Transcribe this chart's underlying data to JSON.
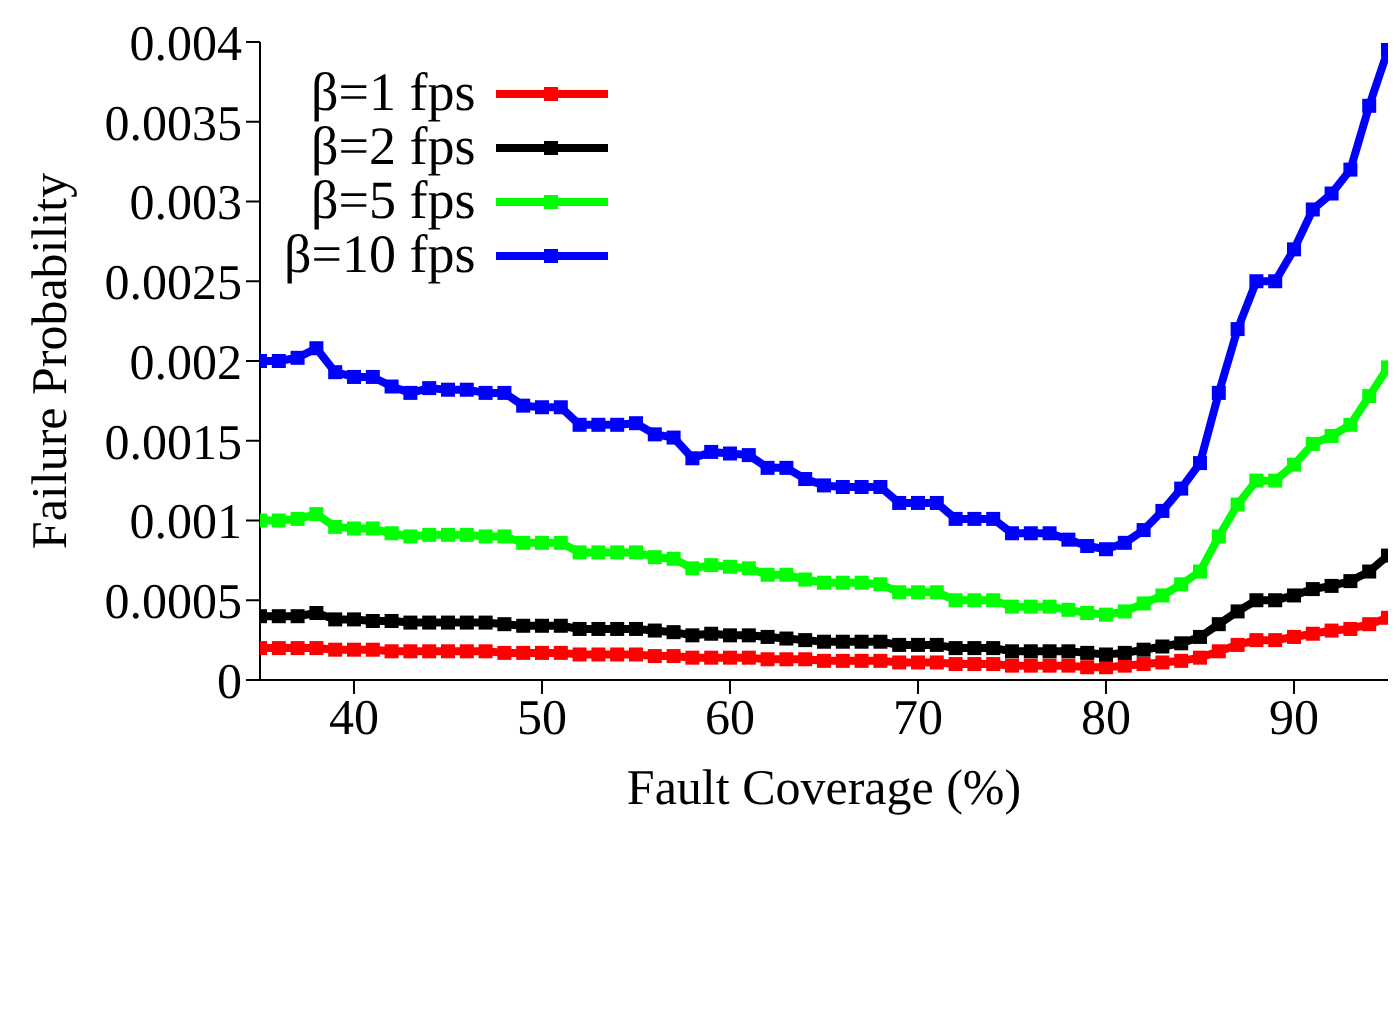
{
  "chart_data": {
    "type": "line",
    "xlabel": "Fault Coverage (%)",
    "ylabel": "Failure Probability",
    "x": [
      35,
      36,
      37,
      38,
      39,
      40,
      41,
      42,
      43,
      44,
      45,
      46,
      47,
      48,
      49,
      50,
      51,
      52,
      53,
      54,
      55,
      56,
      57,
      58,
      59,
      60,
      61,
      62,
      63,
      64,
      65,
      66,
      67,
      68,
      69,
      70,
      71,
      72,
      73,
      74,
      75,
      76,
      77,
      78,
      79,
      80,
      81,
      82,
      83,
      84,
      85,
      86,
      87,
      88,
      89,
      90,
      91,
      92,
      93,
      94,
      95
    ],
    "series": [
      {
        "name": "β=1 fps",
        "color": "#ff0000",
        "values": [
          0.0002,
          0.0002,
          0.0002,
          0.0002,
          0.00019,
          0.00019,
          0.00019,
          0.00018,
          0.00018,
          0.00018,
          0.00018,
          0.00018,
          0.00018,
          0.00017,
          0.00017,
          0.00017,
          0.00017,
          0.00016,
          0.00016,
          0.00016,
          0.00016,
          0.00015,
          0.00015,
          0.00014,
          0.00014,
          0.00014,
          0.00014,
          0.00013,
          0.00013,
          0.00013,
          0.00012,
          0.00012,
          0.00012,
          0.00012,
          0.00011,
          0.00011,
          0.00011,
          0.0001,
          0.0001,
          0.0001,
          9e-05,
          9e-05,
          9e-05,
          9e-05,
          8e-05,
          8e-05,
          9e-05,
          0.0001,
          0.00011,
          0.00012,
          0.00014,
          0.00018,
          0.00022,
          0.00025,
          0.00025,
          0.00027,
          0.00029,
          0.00031,
          0.00032,
          0.00035,
          0.00039
        ]
      },
      {
        "name": "β=2 fps",
        "color": "#000000",
        "values": [
          0.0004,
          0.0004,
          0.0004,
          0.00042,
          0.00038,
          0.00038,
          0.00037,
          0.00037,
          0.00036,
          0.00036,
          0.00036,
          0.00036,
          0.00036,
          0.00035,
          0.00034,
          0.00034,
          0.00034,
          0.00032,
          0.00032,
          0.00032,
          0.00032,
          0.00031,
          0.0003,
          0.00028,
          0.00029,
          0.00028,
          0.00028,
          0.00027,
          0.00026,
          0.00025,
          0.00024,
          0.00024,
          0.00024,
          0.00024,
          0.00022,
          0.00022,
          0.00022,
          0.0002,
          0.0002,
          0.0002,
          0.00018,
          0.00018,
          0.00018,
          0.00018,
          0.00017,
          0.00016,
          0.00017,
          0.00019,
          0.00021,
          0.00023,
          0.00027,
          0.00035,
          0.00043,
          0.0005,
          0.0005,
          0.00053,
          0.00057,
          0.00059,
          0.00062,
          0.00068,
          0.00078
        ]
      },
      {
        "name": "β=5 fps",
        "color": "#00ff00",
        "values": [
          0.001,
          0.001,
          0.00101,
          0.00104,
          0.00096,
          0.00095,
          0.00095,
          0.00092,
          0.0009,
          0.00091,
          0.00091,
          0.00091,
          0.0009,
          0.0009,
          0.00086,
          0.00086,
          0.00086,
          0.0008,
          0.0008,
          0.0008,
          0.0008,
          0.00077,
          0.00076,
          0.0007,
          0.00072,
          0.00071,
          0.0007,
          0.00066,
          0.00066,
          0.00063,
          0.00061,
          0.00061,
          0.00061,
          0.0006,
          0.00055,
          0.00055,
          0.00055,
          0.0005,
          0.0005,
          0.0005,
          0.00046,
          0.00046,
          0.00046,
          0.00044,
          0.00042,
          0.00041,
          0.00043,
          0.00048,
          0.00053,
          0.0006,
          0.00068,
          0.0009,
          0.0011,
          0.00125,
          0.00125,
          0.00135,
          0.00148,
          0.00153,
          0.0016,
          0.00178,
          0.00196
        ]
      },
      {
        "name": "β=10 fps",
        "color": "#0000ff",
        "values": [
          0.002,
          0.002,
          0.00202,
          0.00208,
          0.00193,
          0.0019,
          0.0019,
          0.00184,
          0.0018,
          0.00183,
          0.00182,
          0.00182,
          0.0018,
          0.0018,
          0.00172,
          0.00171,
          0.00171,
          0.0016,
          0.0016,
          0.0016,
          0.00161,
          0.00154,
          0.00152,
          0.00139,
          0.00143,
          0.00142,
          0.00141,
          0.00133,
          0.00133,
          0.00126,
          0.00122,
          0.00121,
          0.00121,
          0.00121,
          0.00111,
          0.00111,
          0.00111,
          0.00101,
          0.00101,
          0.00101,
          0.00092,
          0.00092,
          0.00092,
          0.00088,
          0.00084,
          0.00082,
          0.00086,
          0.00094,
          0.00106,
          0.0012,
          0.00136,
          0.0018,
          0.0022,
          0.0025,
          0.0025,
          0.0027,
          0.00295,
          0.00305,
          0.0032,
          0.0036,
          0.00395
        ]
      }
    ],
    "xlim": [
      35,
      95
    ],
    "xticks": [
      40,
      50,
      60,
      70,
      80,
      90
    ],
    "ylim": [
      0,
      0.004
    ],
    "yticks": [
      0,
      0.0005,
      0.001,
      0.0015,
      0.002,
      0.0025,
      0.003,
      0.0035,
      0.004
    ],
    "grid": false,
    "legend": "top left",
    "marker": "square",
    "line_style": "solid"
  }
}
